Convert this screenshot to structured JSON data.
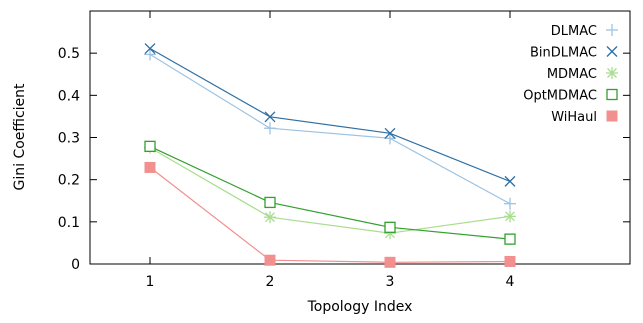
{
  "chart_data": {
    "type": "line",
    "title": "",
    "xlabel": "Topology Index",
    "ylabel": "Gini Coefficient",
    "x": [
      1,
      2,
      3,
      4
    ],
    "xlim": [
      0.5,
      5.0
    ],
    "ylim": [
      0,
      0.6
    ],
    "xticks": [
      "1",
      "2",
      "3",
      "4"
    ],
    "yticks": [
      "0",
      "0.1",
      "0.2",
      "0.3",
      "0.4",
      "0.5"
    ],
    "grid": false,
    "legend_position": "top-right",
    "series": [
      {
        "name": "DLMAC",
        "values": [
          0.497,
          0.322,
          0.298,
          0.143
        ],
        "color": "#9ec3e2",
        "marker": "plus"
      },
      {
        "name": "BinDLMAC",
        "values": [
          0.511,
          0.349,
          0.31,
          0.196
        ],
        "color": "#2e6fa3",
        "marker": "x"
      },
      {
        "name": "MDMAC",
        "values": [
          0.276,
          0.111,
          0.073,
          0.113
        ],
        "color": "#a9dd8f",
        "marker": "star"
      },
      {
        "name": "OptMDMAC",
        "values": [
          0.279,
          0.146,
          0.087,
          0.059
        ],
        "color": "#32a02c",
        "marker": "square-open"
      },
      {
        "name": "WiHaul",
        "values": [
          0.229,
          0.009,
          0.004,
          0.006
        ],
        "color": "#f28f8f",
        "marker": "square-filled"
      }
    ]
  }
}
